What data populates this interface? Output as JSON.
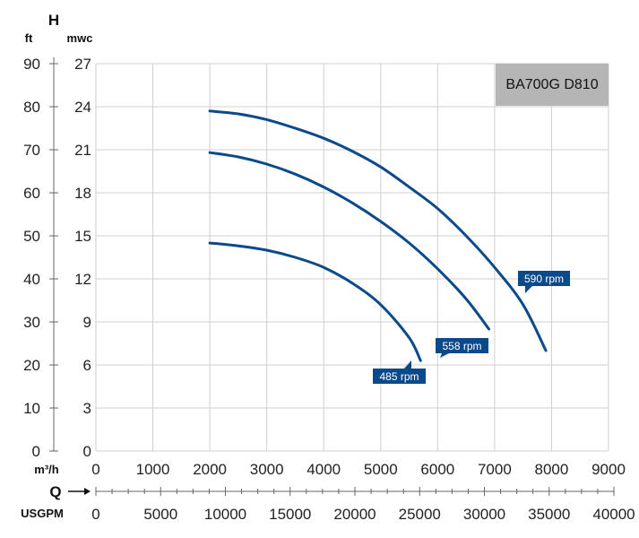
{
  "chart_data": {
    "type": "line",
    "title": "BA700G D810",
    "x_axis": {
      "letter": "Q",
      "primary_unit": "m³/h",
      "primary_range": [
        0,
        9000
      ],
      "primary_ticks": [
        "0",
        "1000",
        "2000",
        "3000",
        "4000",
        "5000",
        "6000",
        "7000",
        "8000",
        "9000"
      ],
      "secondary_unit": "USGPM",
      "secondary_range": [
        0,
        40000
      ],
      "secondary_ticks": [
        "0",
        "5000",
        "10000",
        "15000",
        "20000",
        "25000",
        "30000",
        "35000",
        "40000"
      ]
    },
    "y_axis": {
      "letter": "H",
      "primary_unit": "mwc",
      "primary_range": [
        0,
        27
      ],
      "primary_ticks": [
        "0",
        "3",
        "6",
        "9",
        "12",
        "15",
        "18",
        "21",
        "24",
        "27"
      ],
      "secondary_unit": "ft",
      "secondary_range": [
        0,
        90
      ],
      "secondary_ticks": [
        "0",
        "10",
        "20",
        "30",
        "40",
        "50",
        "60",
        "70",
        "80",
        "90"
      ]
    },
    "grid": true,
    "colors": {
      "curve": "#0a4a8a",
      "label_bg": "#0a4a8a",
      "title_bg": "#b5b5b5",
      "grid": "#cfcfcf"
    },
    "series": [
      {
        "name": "590 rpm",
        "x": [
          2000,
          2500,
          3000,
          3500,
          4000,
          4500,
          5000,
          5500,
          6000,
          6500,
          7000,
          7500,
          7900
        ],
        "y": [
          23.7,
          23.5,
          23.1,
          22.5,
          21.8,
          20.9,
          19.8,
          18.4,
          16.9,
          15.0,
          12.8,
          10.2,
          7.0
        ]
      },
      {
        "name": "558 rpm",
        "x": [
          2000,
          2500,
          3000,
          3500,
          4000,
          4500,
          5000,
          5500,
          6000,
          6500,
          6900
        ],
        "y": [
          20.8,
          20.5,
          20.0,
          19.3,
          18.4,
          17.3,
          16.0,
          14.5,
          12.7,
          10.6,
          8.5
        ]
      },
      {
        "name": "485 rpm",
        "x": [
          2000,
          2500,
          3000,
          3500,
          4000,
          4500,
          5000,
          5500,
          5700
        ],
        "y": [
          14.5,
          14.3,
          14.0,
          13.5,
          12.8,
          11.7,
          10.2,
          7.9,
          6.3
        ]
      }
    ]
  }
}
